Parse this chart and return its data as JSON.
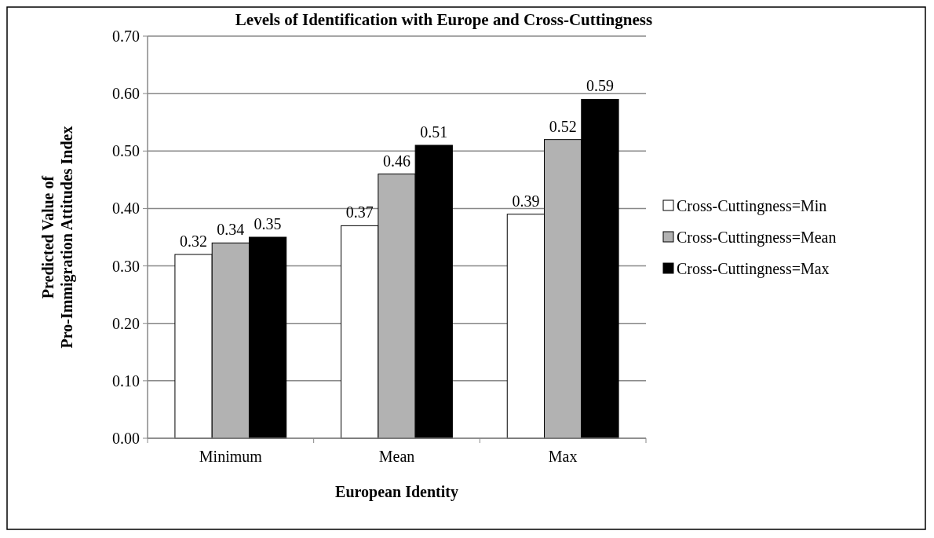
{
  "chart_data": {
    "type": "bar",
    "title": "Levels of Identification with Europe and Cross-Cuttingness",
    "xlabel": "European Identity",
    "ylabel": "Predicted Value of\nPro-Immigration Attitudes Index",
    "categories": [
      "Minimum",
      "Mean",
      "Max"
    ],
    "series": [
      {
        "name": "Cross-Cuttingness=Min",
        "color": "#ffffff",
        "values": [
          0.32,
          0.37,
          0.39
        ]
      },
      {
        "name": "Cross-Cuttingness=Mean",
        "color": "#b2b2b2",
        "values": [
          0.34,
          0.46,
          0.52
        ]
      },
      {
        "name": "Cross-Cuttingness=Max",
        "color": "#000000",
        "values": [
          0.35,
          0.51,
          0.59
        ]
      }
    ],
    "ylim": [
      0,
      0.7
    ],
    "yticks": [
      {
        "value": 0,
        "label": "0.00"
      },
      {
        "value": 0.1,
        "label": "0.10"
      },
      {
        "value": 0.2,
        "label": "0.20"
      },
      {
        "value": 0.3,
        "label": "0.30"
      },
      {
        "value": 0.4,
        "label": "0.40"
      },
      {
        "value": 0.5,
        "label": "0.50"
      },
      {
        "value": 0.6,
        "label": "0.60"
      },
      {
        "value": 0.7,
        "label": "0.70"
      }
    ],
    "grid": "y",
    "legend": "right",
    "data_labels": true
  }
}
